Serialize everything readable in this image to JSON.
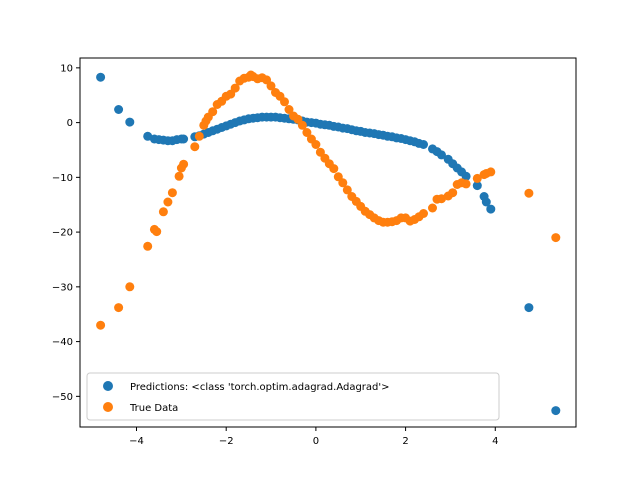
{
  "chart_data": {
    "type": "scatter",
    "title": "",
    "xlabel": "",
    "ylabel": "",
    "xlim": [
      -5.26,
      5.8
    ],
    "ylim": [
      -55.6,
      11.8
    ],
    "xticks": [
      -4,
      -2,
      0,
      2,
      4
    ],
    "yticks": [
      10,
      0,
      -10,
      -20,
      -30,
      -40,
      -50
    ],
    "xtick_labels": [
      "−4",
      "−2",
      "0",
      "2",
      "4"
    ],
    "ytick_labels": [
      "10",
      "0",
      "−10",
      "−20",
      "−30",
      "−40",
      "−50"
    ],
    "grid": false,
    "legend_position": "lower-left",
    "series": [
      {
        "name": "Predictions: <class 'torch.optim.adagrad.Adagrad'>",
        "color": "#1f77b4",
        "x": [
          -4.8,
          -4.4,
          -4.15,
          -3.75,
          -3.6,
          -3.5,
          -3.4,
          -3.3,
          -3.2,
          -3.1,
          -3.0,
          -2.95,
          -2.7,
          -2.6,
          -2.5,
          -2.4,
          -2.3,
          -2.2,
          -2.1,
          -2.0,
          -1.9,
          -1.8,
          -1.7,
          -1.6,
          -1.5,
          -1.4,
          -1.3,
          -1.2,
          -1.1,
          -1.0,
          -0.9,
          -0.8,
          -0.7,
          -0.6,
          -0.5,
          -0.4,
          -0.3,
          -0.2,
          -0.1,
          0.0,
          0.1,
          0.2,
          0.3,
          0.4,
          0.5,
          0.6,
          0.7,
          0.8,
          0.9,
          1.0,
          1.1,
          1.2,
          1.3,
          1.4,
          1.5,
          1.6,
          1.7,
          1.8,
          1.9,
          2.0,
          2.1,
          2.2,
          2.3,
          2.4,
          2.6,
          2.7,
          2.8,
          2.95,
          3.05,
          3.15,
          3.25,
          3.35,
          3.6,
          3.75,
          3.8,
          3.9,
          4.75,
          5.35
        ],
        "y": [
          8.3,
          2.4,
          0.1,
          -2.5,
          -3.0,
          -3.1,
          -3.2,
          -3.3,
          -3.3,
          -3.1,
          -3.0,
          -3.0,
          -2.6,
          -2.4,
          -2.1,
          -1.8,
          -1.5,
          -1.2,
          -0.9,
          -0.6,
          -0.3,
          0.0,
          0.3,
          0.5,
          0.7,
          0.8,
          0.9,
          1.0,
          1.0,
          1.0,
          1.0,
          0.9,
          0.8,
          0.7,
          0.6,
          0.5,
          0.3,
          0.1,
          0.0,
          -0.1,
          -0.3,
          -0.4,
          -0.5,
          -0.7,
          -0.8,
          -1.0,
          -1.1,
          -1.3,
          -1.5,
          -1.6,
          -1.8,
          -1.9,
          -2.0,
          -2.2,
          -2.3,
          -2.5,
          -2.6,
          -2.8,
          -2.9,
          -3.1,
          -3.3,
          -3.5,
          -3.8,
          -4.0,
          -4.8,
          -5.3,
          -5.9,
          -6.7,
          -7.5,
          -8.3,
          -9.0,
          -9.8,
          -11.5,
          -13.5,
          -14.5,
          -15.8,
          -33.8,
          -52.6
        ]
      },
      {
        "name": "True Data",
        "color": "#ff7f0e",
        "x": [
          -4.8,
          -4.4,
          -4.15,
          -3.75,
          -3.6,
          -3.55,
          -3.4,
          -3.3,
          -3.2,
          -3.05,
          -3.0,
          -2.95,
          -2.7,
          -2.6,
          -2.5,
          -2.45,
          -2.4,
          -2.3,
          -2.2,
          -2.1,
          -2.0,
          -1.9,
          -1.8,
          -1.7,
          -1.6,
          -1.5,
          -1.45,
          -1.4,
          -1.3,
          -1.2,
          -1.1,
          -1.0,
          -0.9,
          -0.8,
          -0.7,
          -0.6,
          -0.5,
          -0.4,
          -0.3,
          -0.2,
          -0.1,
          0.0,
          0.1,
          0.2,
          0.3,
          0.4,
          0.5,
          0.6,
          0.7,
          0.8,
          0.9,
          1.0,
          1.1,
          1.2,
          1.3,
          1.4,
          1.5,
          1.6,
          1.7,
          1.8,
          1.9,
          2.0,
          2.1,
          2.2,
          2.3,
          2.4,
          2.6,
          2.7,
          2.8,
          2.95,
          3.05,
          3.15,
          3.25,
          3.35,
          3.6,
          3.75,
          3.8,
          3.9,
          4.75,
          5.35
        ],
        "y": [
          -37.0,
          -33.8,
          -30.0,
          -22.6,
          -19.5,
          -19.9,
          -16.3,
          -14.5,
          -12.8,
          -9.8,
          -8.3,
          -7.6,
          -4.4,
          -2.5,
          -0.5,
          0.3,
          1.0,
          2.0,
          3.3,
          3.9,
          4.8,
          5.2,
          6.3,
          7.6,
          8.1,
          8.3,
          8.7,
          8.4,
          8.0,
          8.2,
          7.8,
          6.7,
          5.5,
          4.8,
          3.8,
          2.4,
          1.2,
          0.6,
          -0.5,
          -1.8,
          -3.0,
          -4.0,
          -5.4,
          -6.5,
          -7.5,
          -8.4,
          -9.9,
          -11.0,
          -12.3,
          -13.5,
          -14.4,
          -15.3,
          -16.2,
          -16.8,
          -17.4,
          -17.9,
          -18.2,
          -18.2,
          -18.1,
          -17.9,
          -17.4,
          -17.4,
          -18.0,
          -17.7,
          -17.2,
          -16.6,
          -15.6,
          -14.0,
          -13.9,
          -13.4,
          -12.8,
          -11.3,
          -11.0,
          -11.2,
          -10.2,
          -9.5,
          -9.3,
          -9.0,
          -12.9,
          -21.0
        ]
      }
    ]
  }
}
